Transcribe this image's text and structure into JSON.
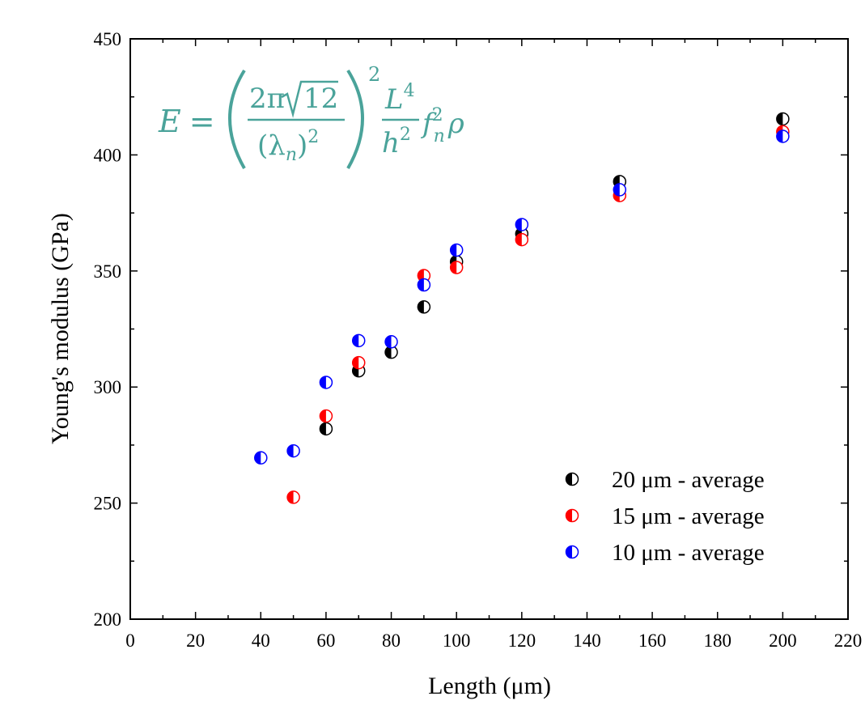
{
  "chart_data": {
    "type": "scatter",
    "xlabel": "Length (μm)",
    "ylabel": "Young's modulus (GPa)",
    "xlim": [
      0,
      220
    ],
    "ylim": [
      200,
      450
    ],
    "x_ticks": [
      "0",
      "20",
      "40",
      "60",
      "80",
      "100",
      "120",
      "140",
      "160",
      "180",
      "200",
      "220"
    ],
    "y_ticks": [
      "200",
      "250",
      "300",
      "350",
      "400",
      "450"
    ],
    "grid": false,
    "legend_position": "bottom-right",
    "marker": "half-filled circle",
    "series": [
      {
        "name": "20 μm - average",
        "color": "#000000",
        "x": [
          60,
          70,
          80,
          90,
          100,
          120,
          150,
          200
        ],
        "y": [
          282,
          307,
          315,
          334.5,
          354,
          366,
          388.5,
          415.5
        ]
      },
      {
        "name": "15 μm - average",
        "color": "#ff0000",
        "x": [
          50,
          60,
          70,
          90,
          100,
          120,
          150,
          200
        ],
        "y": [
          252.5,
          287.5,
          310.5,
          348,
          351.5,
          363.5,
          382.5,
          410
        ]
      },
      {
        "name": "10 μm - average",
        "color": "#0000ff",
        "x": [
          40,
          50,
          60,
          70,
          80,
          90,
          100,
          120,
          150,
          200
        ],
        "y": [
          269.5,
          272.5,
          302,
          320,
          319.5,
          344,
          359,
          370,
          385,
          408
        ]
      }
    ],
    "annotation": {
      "lhs": "E =",
      "num_a": "2π",
      "num_root": "12",
      "den": "(λ",
      "den_sub": "n",
      "den_close": ")",
      "den_sup": "2",
      "outer_sup": "2",
      "L": "L",
      "L_sup": "4",
      "h": "h",
      "h_sup": "2",
      "f": "f",
      "f_sub": "n",
      "f_sup": "2",
      "rho": "ρ"
    }
  }
}
